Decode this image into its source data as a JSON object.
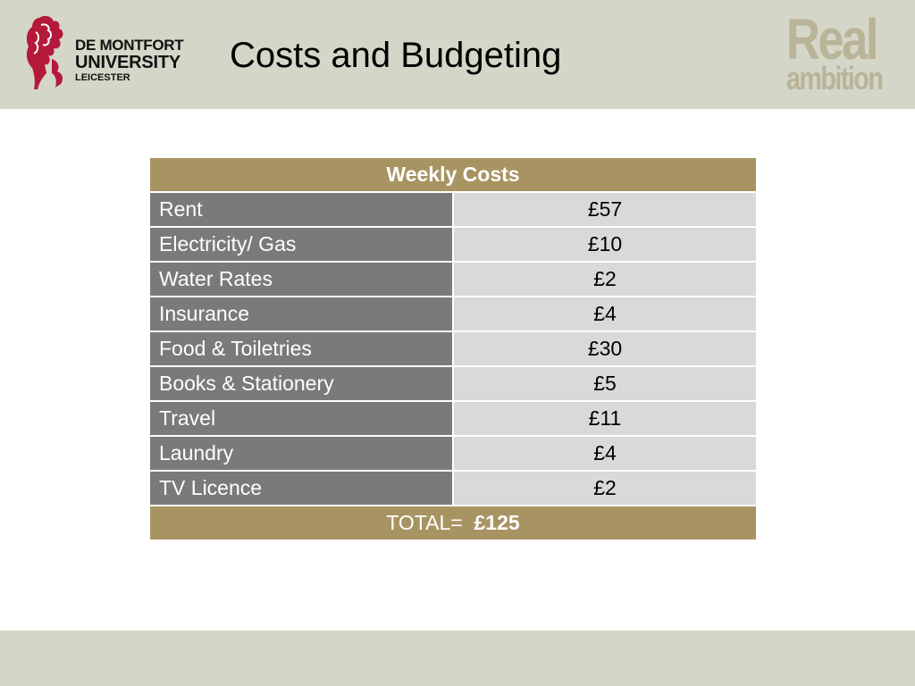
{
  "header": {
    "logo": {
      "line1": "DE MONTFORT",
      "line2": "UNIVERSITY",
      "line3": "LEICESTER"
    },
    "title": "Costs and Budgeting",
    "brand": {
      "line1": "Real",
      "line2": "ambition",
      "color": "#b9b398"
    }
  },
  "table": {
    "heading": "Weekly Costs",
    "rows": [
      {
        "label": "Rent",
        "value": "£57"
      },
      {
        "label": "Electricity/ Gas",
        "value": "£10"
      },
      {
        "label": "Water Rates",
        "value": "£2"
      },
      {
        "label": "Insurance",
        "value": "£4"
      },
      {
        "label": "Food & Toiletries",
        "value": "£30"
      },
      {
        "label": "Books & Stationery",
        "value": "£5"
      },
      {
        "label": "Travel",
        "value": "£11"
      },
      {
        "label": "Laundry",
        "value": "£4"
      },
      {
        "label": "TV Licence",
        "value": "£2"
      }
    ],
    "total_label": "TOTAL=",
    "total_value": "£125"
  },
  "colors": {
    "header_bg": "#d4d6c7",
    "table_accent": "#a89463",
    "label_cell": "#7a7a7a",
    "value_cell": "#d9d9d9",
    "logo_red": "#b5193a"
  }
}
